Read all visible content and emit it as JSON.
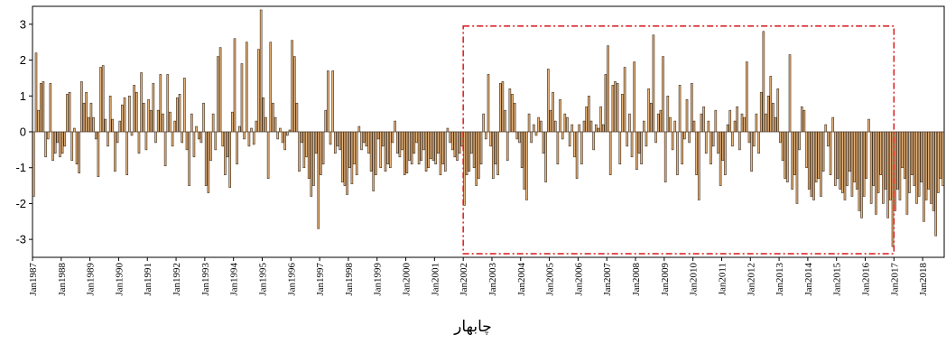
{
  "chart_data": {
    "type": "bar",
    "title": "",
    "xlabel": "",
    "ylabel": "",
    "caption": "چابهار",
    "ylim": [
      -3.5,
      3.5
    ],
    "yticks": [
      3,
      2,
      1,
      0,
      -1,
      -2,
      -3
    ],
    "x_start": "Jan 1987",
    "x_end": "Sep 2018",
    "frequency": "monthly",
    "xtick_labels": [
      "Jan1987",
      "Jan1988",
      "Jan1989",
      "Jan1990",
      "Jan1991",
      "Jan1992",
      "Jan1993",
      "Jan1994",
      "Jan1995",
      "Jan1996",
      "Jan1997",
      "Jan1998",
      "Jan1999",
      "Jan2000",
      "Jan2001",
      "Jan2002",
      "Jan2003",
      "Jan2004",
      "Jan2005",
      "Jan2006",
      "Jan2007",
      "Jan2008",
      "Jan2009",
      "Jan2010",
      "Jan2011",
      "Jan2012",
      "Jan2013",
      "Jan2014",
      "Jan2015",
      "Jan2016",
      "Jan2017",
      "Jan2018"
    ],
    "highlight_region": {
      "from": "Jan2002",
      "to": "Jan2017",
      "style": "dash-dot",
      "color": "#d7191c"
    },
    "colors": {
      "bar_fill": "#e8b47a",
      "bar_stroke": "#3a2a1c",
      "axis": "#000000"
    },
    "years": [
      {
        "year": 1987,
        "values": [
          -1.8,
          2.2,
          0.6,
          1.35,
          1.4,
          -0.7,
          -0.2,
          1.35,
          -0.8,
          -0.6,
          -0.3,
          -0.7
        ]
      },
      {
        "year": 1988,
        "values": [
          -0.6,
          -0.4,
          1.05,
          1.1,
          -0.8,
          0.1,
          -0.9,
          -1.15,
          1.4,
          0.8,
          1.1,
          0.4
        ]
      },
      {
        "year": 1989,
        "values": [
          0.8,
          0.4,
          -0.2,
          -1.25,
          1.8,
          1.85,
          0.35,
          -0.4,
          1.0,
          0.35,
          -1.1,
          -0.3
        ]
      },
      {
        "year": 1990,
        "values": [
          0.3,
          0.75,
          0.95,
          -1.2,
          1.0,
          -0.1,
          1.3,
          1.1,
          -0.6,
          1.65,
          0.8,
          -0.5
        ]
      },
      {
        "year": 1991,
        "values": [
          0.9,
          0.6,
          1.35,
          -0.3,
          0.6,
          1.6,
          0.5,
          -0.95,
          1.6,
          0.55,
          -0.4,
          0.3
        ]
      },
      {
        "year": 1992,
        "values": [
          0.95,
          1.05,
          -0.3,
          1.5,
          -0.5,
          -1.5,
          0.5,
          -0.7,
          0.15,
          -0.2,
          -0.3,
          0.8
        ]
      },
      {
        "year": 1993,
        "values": [
          -1.5,
          -1.7,
          -0.8,
          0.5,
          -0.5,
          2.1,
          2.35,
          -0.4,
          -1.2,
          -0.7,
          -1.55,
          0.55
        ]
      },
      {
        "year": 1994,
        "values": [
          2.6,
          -0.9,
          0.15,
          1.9,
          -0.2,
          2.5,
          -0.4,
          0.1,
          -0.35,
          0.3,
          2.3,
          3.4
        ]
      },
      {
        "year": 1995,
        "values": [
          0.95,
          0.4,
          -1.3,
          2.5,
          0.8,
          0.4,
          -0.2,
          0.1,
          -0.3,
          -0.5,
          -0.1,
          0.05
        ]
      },
      {
        "year": 1996,
        "values": [
          2.55,
          2.1,
          0.8,
          -1.1,
          -0.3,
          -1.0,
          -0.7,
          -1.3,
          -1.8,
          -1.5,
          -0.6,
          -2.7
        ]
      },
      {
        "year": 1997,
        "values": [
          -1.2,
          -0.9,
          0.6,
          1.7,
          -0.35,
          1.7,
          -0.6,
          -0.4,
          -0.5,
          -1.4,
          -1.5,
          -1.75
        ]
      },
      {
        "year": 1998,
        "values": [
          -1.0,
          -1.45,
          -0.9,
          -1.2,
          0.15,
          -0.5,
          -0.3,
          -0.4,
          -0.6,
          -1.1,
          -1.65,
          -1.2
        ]
      },
      {
        "year": 1999,
        "values": [
          -0.2,
          -1.0,
          -0.4,
          -1.1,
          -0.9,
          -1.0,
          -0.3,
          0.3,
          -0.6,
          -0.7,
          -0.5,
          -1.2
        ]
      },
      {
        "year": 2000,
        "values": [
          -1.15,
          -0.8,
          -0.9,
          -0.6,
          -0.3,
          -0.9,
          -0.8,
          -0.5,
          -1.1,
          -1.0,
          -0.75,
          -0.8
        ]
      },
      {
        "year": 2001,
        "values": [
          -0.9,
          -0.6,
          -1.2,
          -0.9,
          -1.1,
          0.1,
          -0.3,
          -0.5,
          -0.7,
          -0.8,
          -0.6,
          -0.4
        ]
      },
      {
        "year": 2002,
        "values": [
          -2.05,
          -1.2,
          -1.1,
          -0.6,
          -1.0,
          -1.5,
          -1.3,
          -0.9,
          0.5,
          -0.2,
          1.6,
          -0.4
        ]
      },
      {
        "year": 2003,
        "values": [
          -1.3,
          -0.9,
          -1.2,
          1.35,
          1.4,
          0.6,
          -0.8,
          1.2,
          1.05,
          0.8,
          -0.2,
          -0.3
        ]
      },
      {
        "year": 2004,
        "values": [
          -1.0,
          -1.6,
          -1.9,
          0.5,
          -0.3,
          0.2,
          -0.1,
          0.4,
          0.3,
          -0.6,
          -1.4,
          1.75
        ]
      },
      {
        "year": 2005,
        "values": [
          0.6,
          1.1,
          0.3,
          -0.9,
          0.9,
          -0.2,
          0.5,
          0.4,
          -0.4,
          0.2,
          -0.7,
          -1.3
        ]
      },
      {
        "year": 2006,
        "values": [
          0.2,
          -0.9,
          0.3,
          0.7,
          1.0,
          0.3,
          -0.5,
          0.2,
          0.1,
          0.7,
          0.2,
          1.6
        ]
      },
      {
        "year": 2007,
        "values": [
          2.4,
          -1.2,
          1.3,
          1.4,
          1.35,
          -0.9,
          1.05,
          1.8,
          -0.4,
          0.5,
          -0.7,
          1.95
        ]
      },
      {
        "year": 2008,
        "values": [
          -1.05,
          -0.6,
          -0.9,
          0.3,
          -0.4,
          1.2,
          0.8,
          2.7,
          -0.3,
          0.5,
          0.6,
          2.1
        ]
      },
      {
        "year": 2009,
        "values": [
          -1.4,
          1.0,
          0.4,
          -0.5,
          0.3,
          -1.2,
          1.3,
          -0.9,
          -0.2,
          0.9,
          -0.3,
          1.35
        ]
      },
      {
        "year": 2010,
        "values": [
          0.3,
          -1.2,
          -1.9,
          0.5,
          0.7,
          -0.6,
          0.3,
          -0.9,
          -0.4,
          0.6,
          -0.6,
          -1.5
        ]
      },
      {
        "year": 2011,
        "values": [
          -0.8,
          -1.2,
          0.2,
          0.6,
          -0.4,
          0.3,
          0.7,
          -0.5,
          0.5,
          0.4,
          1.95,
          -0.3
        ]
      },
      {
        "year": 2012,
        "values": [
          -1.1,
          -0.4,
          0.5,
          -0.6,
          1.1,
          2.8,
          0.5,
          1.0,
          1.55,
          0.8,
          0.4,
          1.2
        ]
      },
      {
        "year": 2013,
        "values": [
          -0.3,
          -0.8,
          -1.3,
          -1.4,
          2.15,
          -1.6,
          -1.2,
          -2.0,
          -0.5,
          0.7,
          0.6,
          -1.0
        ]
      },
      {
        "year": 2014,
        "values": [
          -1.6,
          -1.8,
          -1.9,
          -1.4,
          -1.3,
          -1.8,
          -1.1,
          0.2,
          -0.4,
          -1.2,
          0.4,
          -1.5
        ]
      },
      {
        "year": 2015,
        "values": [
          -1.3,
          -1.6,
          -1.7,
          -1.9,
          -1.5,
          -1.1,
          -1.8,
          -1.4,
          -1.6,
          -2.2,
          -2.4,
          -1.8
        ]
      },
      {
        "year": 2016,
        "values": [
          -1.3,
          0.35,
          -2.0,
          -1.5,
          -2.3,
          -1.7,
          -1.2,
          -2.0,
          -1.6,
          -2.4,
          -1.9,
          -3.2
        ]
      },
      {
        "year": 2017,
        "values": [
          -2.2,
          -1.6,
          -1.9,
          -1.0,
          -1.3,
          -2.3,
          -1.7,
          -1.2,
          -1.5,
          -2.0,
          -1.8,
          -1.4
        ]
      },
      {
        "year": 2018,
        "values": [
          -2.5,
          -1.9,
          -1.6,
          -2.0,
          -2.2,
          -2.9,
          -1.7,
          -1.3,
          -1.5
        ]
      }
    ]
  }
}
